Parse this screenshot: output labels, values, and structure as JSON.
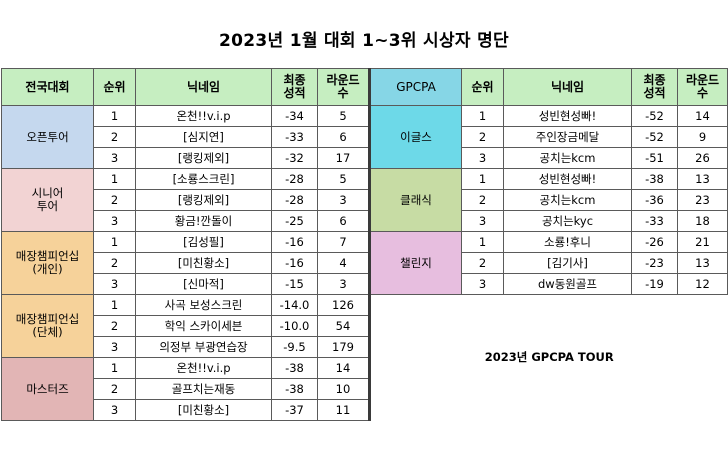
{
  "title": "2023년 1월 대회 1~3위 시상자 명단",
  "headers_left": [
    "전국대회",
    "순위",
    "닉네임",
    "최종\n성적",
    "라운드\n수"
  ],
  "headers_right": [
    "GPCPA",
    "순위",
    "닉네임",
    "최종\n성적",
    "라운드\n수"
  ],
  "left_groups": [
    {
      "category": "오픈투어",
      "rows": [
        {
          "rank": "1",
          "nick": "온천!!v.i.p",
          "score": "-34",
          "rounds": "5"
        },
        {
          "rank": "2",
          "nick": "[심지연]",
          "score": "-33",
          "rounds": "6"
        },
        {
          "rank": "3",
          "nick": "[랭킹제외]",
          "score": "-32",
          "rounds": "17"
        }
      ]
    },
    {
      "category": "시니어\n투어",
      "rows": [
        {
          "rank": "1",
          "nick": "[소룡스크린]",
          "score": "-28",
          "rounds": "5"
        },
        {
          "rank": "2",
          "nick": "[랭킹제외]",
          "score": "-28",
          "rounds": "3"
        },
        {
          "rank": "3",
          "nick": "황금!깐돌이",
          "score": "-25",
          "rounds": "6"
        }
      ]
    },
    {
      "category": "매장챔피언십\n(개인)",
      "rows": [
        {
          "rank": "1",
          "nick": "[김성필]",
          "score": "-16",
          "rounds": "7"
        },
        {
          "rank": "2",
          "nick": "[미친황소]",
          "score": "-16",
          "rounds": "4"
        },
        {
          "rank": "3",
          "nick": "[신마적]",
          "score": "-15",
          "rounds": "3"
        }
      ]
    },
    {
      "category": "매장챔피언십\n(단체)",
      "rows": [
        {
          "rank": "1",
          "nick": "사곡 보성스크린",
          "score": "-14.0",
          "rounds": "126"
        },
        {
          "rank": "2",
          "nick": "학익 스카이세븐",
          "score": "-10.0",
          "rounds": "54"
        },
        {
          "rank": "3",
          "nick": "의정부 부광연습장",
          "score": "-9.5",
          "rounds": "179"
        }
      ]
    },
    {
      "category": "마스터즈",
      "rows": [
        {
          "rank": "1",
          "nick": "온천!!v.i.p",
          "score": "-38",
          "rounds": "14"
        },
        {
          "rank": "2",
          "nick": "골프치는재동",
          "score": "-38",
          "rounds": "10"
        },
        {
          "rank": "3",
          "nick": "[미친황소]",
          "score": "-37",
          "rounds": "11"
        }
      ]
    }
  ],
  "right_groups": [
    {
      "category": "이글스",
      "rows": [
        {
          "rank": "1",
          "nick": "성빈현성빠!",
          "score": "-52",
          "rounds": "14"
        },
        {
          "rank": "2",
          "nick": "주인장금메달",
          "score": "-52",
          "rounds": "9"
        },
        {
          "rank": "3",
          "nick": "공치는kcm",
          "score": "-51",
          "rounds": "26"
        }
      ]
    },
    {
      "category": "클래식",
      "rows": [
        {
          "rank": "1",
          "nick": "성빈현성빠!",
          "score": "-38",
          "rounds": "13"
        },
        {
          "rank": "2",
          "nick": "공치는kcm",
          "score": "-36",
          "rounds": "23"
        },
        {
          "rank": "3",
          "nick": "공치는kyc",
          "score": "-33",
          "rounds": "18"
        }
      ]
    },
    {
      "category": "챌린지",
      "rows": [
        {
          "rank": "1",
          "nick": "소룡!후니",
          "score": "-26",
          "rounds": "21"
        },
        {
          "rank": "2",
          "nick": "[김기사]",
          "score": "-23",
          "rounds": "13"
        },
        {
          "rank": "3",
          "nick": "dw동원골프",
          "score": "-19",
          "rounds": "12"
        }
      ]
    }
  ],
  "tour_label": "2023년 GPCPA TOUR",
  "colors": {
    "header_green": "#c6eec1",
    "header_cyan": "#86d6e6",
    "open": "#c5d8ee",
    "senior": "#f2d3d3",
    "store": "#f6d29a",
    "masters": "#e2b5b5",
    "eagles": "#6dd9e8",
    "classic": "#c7dca4",
    "challenge": "#e7bedf"
  }
}
